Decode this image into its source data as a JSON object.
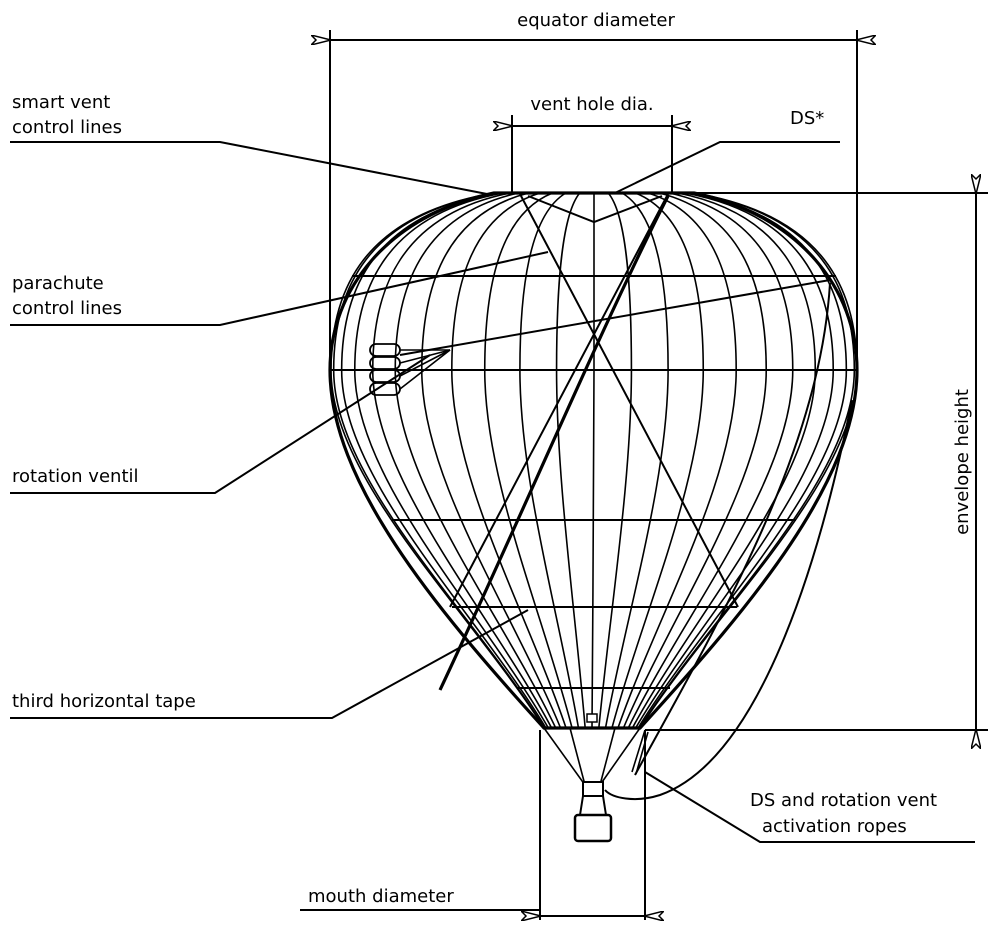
{
  "labels": {
    "equator_diameter": "equator diameter",
    "vent_hole_dia": "vent hole dia.",
    "ds": "DS*",
    "smart_vent_control_lines": [
      "smart vent",
      "control lines"
    ],
    "parachute_control_lines": [
      "parachute",
      "control lines"
    ],
    "rotation_ventil": "rotation ventil",
    "third_horizontal_tape": "third horizontal tape",
    "envelope_height": "envelope height",
    "ds_rotation_ropes": [
      "DS and rotation vent",
      "activation ropes"
    ],
    "mouth_diameter": "mouth diameter"
  }
}
